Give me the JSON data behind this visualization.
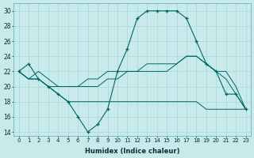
{
  "xlabel": "Humidex (Indice chaleur)",
  "ylabel": "",
  "bg_color": "#c8eaea",
  "grid_color": "#a8d8d8",
  "line_color": "#006666",
  "xlim": [
    -0.5,
    23.5
  ],
  "ylim": [
    13.5,
    31
  ],
  "xticks": [
    0,
    1,
    2,
    3,
    4,
    5,
    6,
    7,
    8,
    9,
    10,
    11,
    12,
    13,
    14,
    15,
    16,
    17,
    18,
    19,
    20,
    21,
    22,
    23
  ],
  "yticks": [
    14,
    16,
    18,
    20,
    22,
    24,
    26,
    28,
    30
  ],
  "series": {
    "line_main": {
      "x": [
        0,
        1,
        2,
        3,
        4,
        5,
        6,
        7,
        8,
        9,
        10,
        11,
        12,
        13,
        14,
        15,
        16,
        17,
        18,
        19,
        20,
        21,
        22,
        23
      ],
      "y": [
        22,
        23,
        21,
        20,
        19,
        18,
        16,
        14,
        15,
        17,
        22,
        25,
        29,
        30,
        30,
        30,
        30,
        29,
        26,
        23,
        22,
        19,
        19,
        17
      ]
    },
    "line_flat": {
      "x": [
        0,
        1,
        2,
        3,
        4,
        5,
        6,
        7,
        8,
        9,
        10,
        11,
        12,
        13,
        14,
        15,
        16,
        17,
        18,
        19,
        20,
        21,
        22,
        23
      ],
      "y": [
        22,
        21,
        21,
        20,
        19,
        18,
        18,
        18,
        18,
        18,
        18,
        18,
        18,
        18,
        18,
        18,
        18,
        18,
        18,
        17,
        17,
        17,
        17,
        17
      ]
    },
    "line_grad1": {
      "x": [
        0,
        1,
        2,
        3,
        4,
        5,
        6,
        7,
        8,
        9,
        10,
        11,
        12,
        13,
        14,
        15,
        16,
        17,
        18,
        19,
        20,
        21,
        22,
        23
      ],
      "y": [
        22,
        21,
        21,
        20,
        20,
        20,
        20,
        20,
        20,
        21,
        21,
        22,
        22,
        22,
        22,
        22,
        23,
        24,
        24,
        23,
        22,
        22,
        20,
        17
      ]
    },
    "line_grad2": {
      "x": [
        0,
        1,
        2,
        3,
        4,
        5,
        6,
        7,
        8,
        9,
        10,
        11,
        12,
        13,
        14,
        15,
        16,
        17,
        18,
        19,
        20,
        21,
        22,
        23
      ],
      "y": [
        22,
        21,
        22,
        21,
        20,
        20,
        20,
        21,
        21,
        22,
        22,
        22,
        22,
        23,
        23,
        23,
        23,
        24,
        24,
        23,
        22,
        21,
        19,
        17
      ]
    }
  }
}
